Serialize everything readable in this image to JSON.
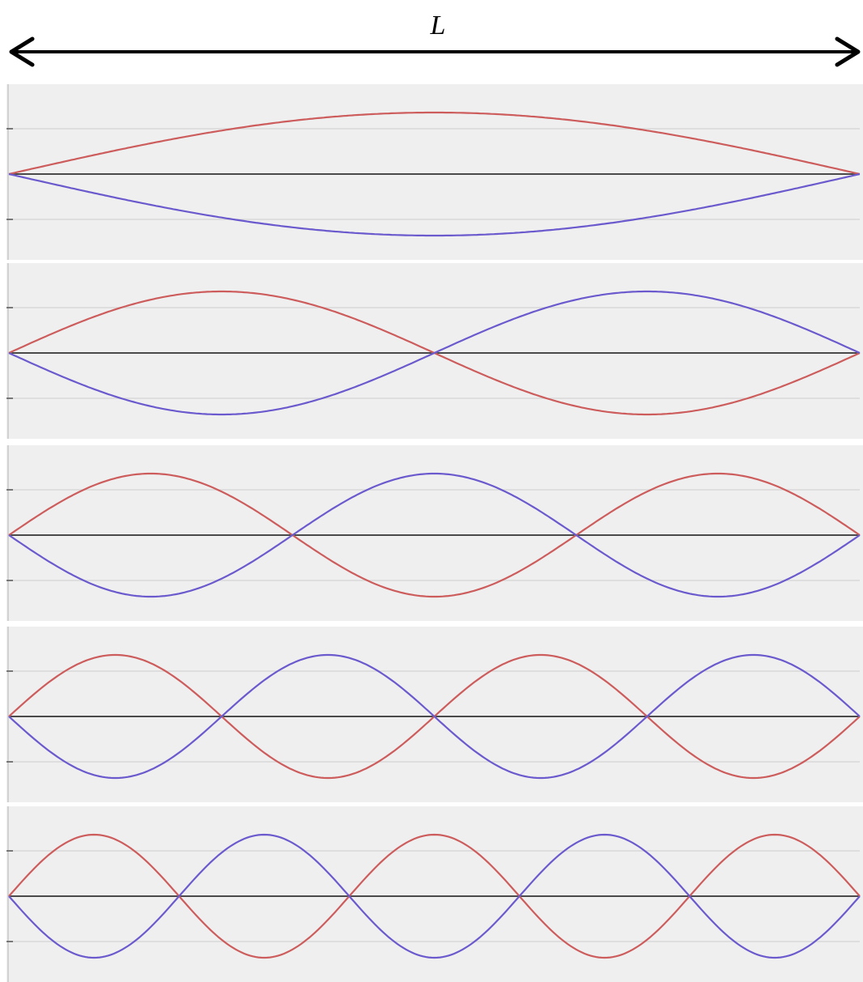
{
  "length_label": "L",
  "colors": {
    "panel_background": "#efefef",
    "gridline": "#d9d9d9",
    "axis_line": "#4a4a4a",
    "red_curve": "#cd5c5c",
    "blue_curve": "#6a5acd",
    "arrow": "#000000"
  },
  "modes": [
    {
      "n": 1
    },
    {
      "n": 2
    },
    {
      "n": 3
    },
    {
      "n": 4
    },
    {
      "n": 5
    }
  ]
}
